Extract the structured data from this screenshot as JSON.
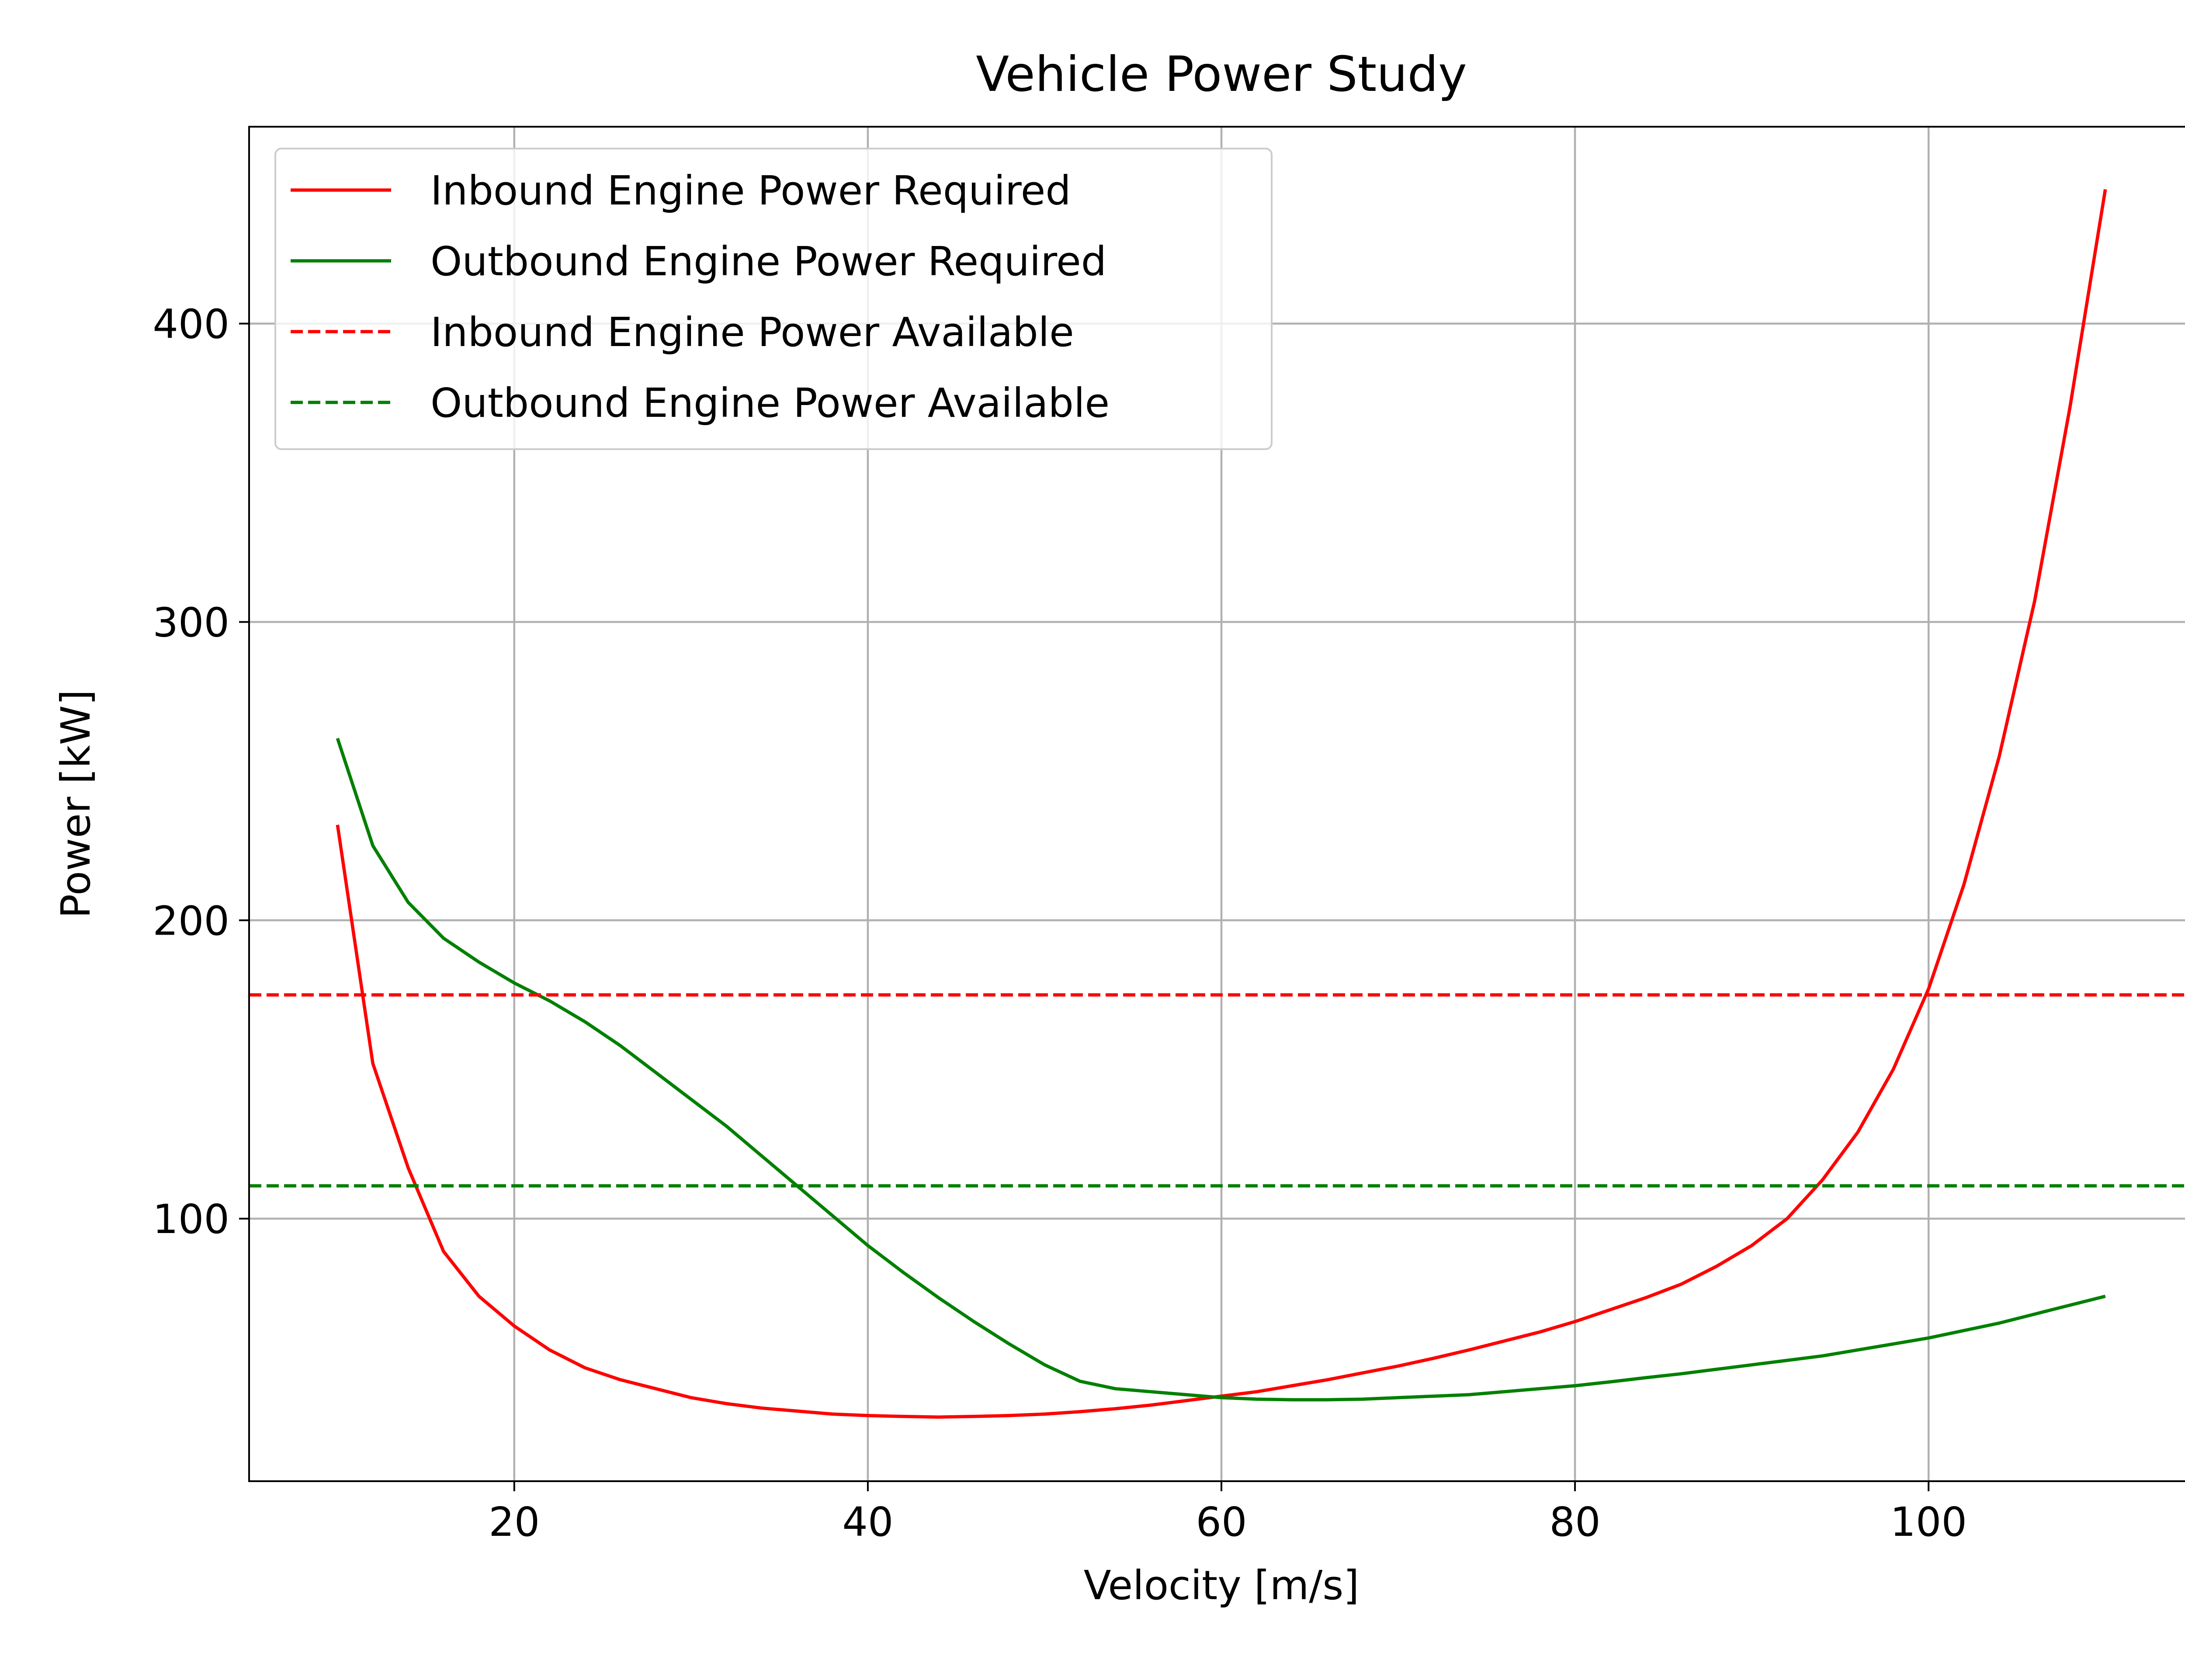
{
  "chart_data": {
    "type": "line",
    "title": "Vehicle Power Study",
    "xlabel": "Velocity [m/s]",
    "ylabel": "Power [kW]",
    "xlim": [
      5,
      115
    ],
    "ylim": [
      12,
      466
    ],
    "xticks": [
      20,
      40,
      60,
      80,
      100
    ],
    "yticks": [
      100,
      200,
      300,
      400
    ],
    "grid": true,
    "legend_position": "upper-left",
    "series": [
      {
        "name": "Inbound Engine Power Required",
        "color": "#ff0000",
        "style": "solid",
        "x": [
          10,
          12,
          14,
          16,
          18,
          20,
          22,
          24,
          26,
          28,
          30,
          32,
          34,
          36,
          38,
          40,
          42,
          44,
          46,
          48,
          50,
          52,
          54,
          56,
          58,
          60,
          62,
          64,
          66,
          68,
          70,
          72,
          74,
          76,
          78,
          80,
          82,
          84,
          86,
          88,
          90,
          92,
          94,
          96,
          98,
          100,
          102,
          104,
          106,
          108,
          110
        ],
        "y": [
          232,
          152,
          117,
          89,
          74,
          64,
          56,
          50,
          46,
          43,
          40,
          38,
          36.5,
          35.5,
          34.5,
          34,
          33.7,
          33.5,
          33.7,
          34,
          34.5,
          35.3,
          36.3,
          37.5,
          39,
          40.5,
          42,
          44,
          46,
          48.3,
          50.6,
          53.2,
          56,
          59,
          62,
          65.5,
          69.5,
          73.5,
          78,
          84,
          91,
          100,
          113,
          129,
          150,
          177,
          212,
          255,
          307,
          372,
          445
        ]
      },
      {
        "name": "Outbound Engine Power Required",
        "color": "#008000",
        "style": "solid",
        "x": [
          10,
          12,
          14,
          16,
          18,
          20,
          22,
          24,
          26,
          28,
          30,
          32,
          34,
          36,
          38,
          40,
          42,
          44,
          46,
          48,
          50,
          52,
          54,
          56,
          58,
          60,
          62,
          64,
          66,
          68,
          70,
          72,
          74,
          76,
          78,
          80,
          82,
          84,
          86,
          88,
          90,
          92,
          94,
          96,
          98,
          100,
          102,
          104,
          106,
          108,
          110
        ],
        "y": [
          261,
          225,
          206,
          194,
          186,
          179,
          173,
          166,
          158,
          149,
          140,
          131,
          121,
          111,
          101,
          91,
          82,
          73.5,
          65.5,
          58,
          51,
          45.5,
          43,
          42,
          41,
          40,
          39.5,
          39.3,
          39.3,
          39.5,
          40,
          40.5,
          41,
          42,
          43,
          44,
          45.3,
          46.7,
          48,
          49.5,
          51,
          52.5,
          54,
          56,
          58,
          60,
          62.5,
          65,
          68,
          71,
          74
        ]
      },
      {
        "name": "Inbound Engine Power Available",
        "color": "#ff0000",
        "style": "dashed",
        "constant_y": 175
      },
      {
        "name": "Outbound Engine Power Available",
        "color": "#008000",
        "style": "dashed",
        "constant_y": 111
      }
    ]
  }
}
